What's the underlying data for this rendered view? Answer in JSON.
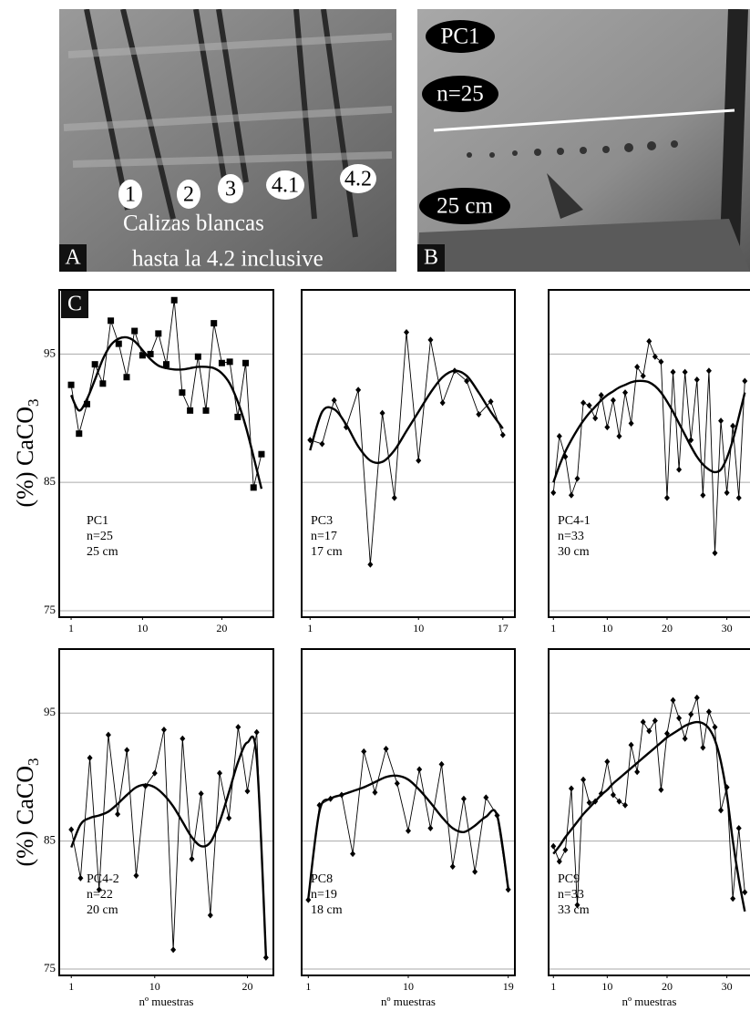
{
  "photos": [
    {
      "label": "A",
      "annotations": [
        "1",
        "2",
        "3",
        "4.1",
        "4.2"
      ],
      "caption": [
        "Calizas blancas",
        "hasta la 4.2 inclusive"
      ]
    },
    {
      "label": "B",
      "annotations": [
        "PC1",
        "n=25",
        "25 cm"
      ]
    }
  ],
  "panel_label": "C",
  "ylabel": "(%) CaCO",
  "ylabel_subscript": "3",
  "xlabel": "nº muestras",
  "chart_data": [
    {
      "type": "line",
      "notes": [
        "PC1",
        "n=25",
        "25 cm"
      ],
      "x": [
        1,
        2,
        3,
        4,
        5,
        6,
        7,
        8,
        9,
        10,
        11,
        12,
        13,
        14,
        15,
        16,
        17,
        18,
        19,
        20,
        21,
        22,
        23,
        24,
        25
      ],
      "series": [
        {
          "color": "#000000",
          "marker": "square",
          "values": [
            92.6,
            88.8,
            91.1,
            94.2,
            92.7,
            97.6,
            95.8,
            93.2,
            96.8,
            94.9,
            95.0,
            96.6,
            94.2,
            99.2,
            92.0,
            90.6,
            94.8,
            90.6,
            97.4,
            94.3,
            94.4,
            90.1,
            94.3,
            84.6,
            87.2
          ]
        },
        {
          "color": "#000000",
          "smooth": true,
          "values": [
            91.8,
            90.6,
            91.5,
            93.0,
            94.6,
            95.7,
            96.2,
            96.3,
            96.0,
            95.3,
            94.6,
            94.1,
            93.9,
            93.8,
            93.8,
            93.9,
            94.0,
            94.0,
            93.9,
            93.5,
            92.7,
            91.3,
            89.4,
            87.0,
            84.5
          ]
        }
      ],
      "xlim": [
        -0.5,
        26.5
      ],
      "xticks": [
        1,
        10,
        20
      ],
      "ylim": [
        74.5,
        100
      ],
      "yticks": [
        75,
        85,
        95
      ],
      "ytick_labels": true,
      "grid": true
    },
    {
      "type": "line",
      "notes": [
        "PC3",
        "n=17",
        "17 cm"
      ],
      "x": [
        1,
        2,
        3,
        4,
        5,
        6,
        7,
        8,
        9,
        10,
        11,
        12,
        13,
        14,
        15,
        16,
        17
      ],
      "series": [
        {
          "color": "#000000",
          "marker": "diamond",
          "values": [
            88.3,
            88.0,
            91.4,
            89.3,
            92.2,
            78.6,
            90.4,
            83.8,
            96.7,
            86.7,
            96.1,
            91.2,
            93.7,
            92.9,
            90.3,
            91.3,
            88.7
          ]
        },
        {
          "color": "#000000",
          "smooth": true,
          "values": [
            87.5,
            90.5,
            90.7,
            89.5,
            87.8,
            86.7,
            86.6,
            87.5,
            89.0,
            90.5,
            92.0,
            93.2,
            93.7,
            93.3,
            92.0,
            90.5,
            89.2
          ]
        }
      ],
      "xlim": [
        0.3,
        18
      ],
      "xticks": [
        1,
        10,
        17
      ],
      "ylim": [
        74.5,
        100
      ],
      "yticks": [
        75,
        85,
        95
      ],
      "ytick_labels": false,
      "grid": true
    },
    {
      "type": "line",
      "notes": [
        "PC4-1",
        "n=33",
        "30 cm"
      ],
      "x": [
        1,
        2,
        3,
        4,
        5,
        6,
        7,
        8,
        9,
        10,
        11,
        12,
        13,
        14,
        15,
        16,
        17,
        18,
        19,
        20,
        21,
        22,
        23,
        24,
        25,
        26,
        27,
        28,
        29,
        30,
        31,
        32,
        33
      ],
      "series": [
        {
          "color": "#000000",
          "marker": "diamond",
          "values": [
            84.2,
            88.6,
            87.0,
            84.0,
            85.3,
            91.2,
            91.0,
            90.0,
            91.8,
            89.3,
            91.4,
            88.6,
            92.0,
            89.6,
            94.0,
            93.3,
            96.0,
            94.8,
            94.4,
            83.8,
            93.6,
            86.0,
            93.6,
            88.3,
            93.0,
            84.0,
            93.7,
            79.5,
            89.8,
            84.2,
            89.4,
            83.8,
            92.9
          ]
        },
        {
          "color": "#000000",
          "smooth": true,
          "values": [
            85.0,
            86.3,
            87.4,
            88.3,
            89.1,
            89.8,
            90.4,
            90.9,
            91.4,
            91.8,
            92.1,
            92.4,
            92.6,
            92.8,
            92.9,
            92.9,
            92.8,
            92.5,
            92.0,
            91.3,
            90.5,
            89.6,
            88.7,
            87.8,
            87.0,
            86.4,
            86.0,
            85.8,
            86.0,
            86.9,
            88.3,
            90.1,
            92.0
          ]
        }
      ],
      "xlim": [
        0.2,
        36
      ],
      "xticks": [
        1,
        10,
        20,
        30
      ],
      "ylim": [
        74.5,
        100
      ],
      "yticks": [
        75,
        85,
        95
      ],
      "ytick_labels": false,
      "grid": true
    },
    {
      "type": "line",
      "notes": [
        "PC4-2",
        "n=22",
        "20 cm"
      ],
      "x": [
        1,
        2,
        3,
        4,
        5,
        6,
        7,
        8,
        9,
        10,
        11,
        12,
        13,
        14,
        15,
        16,
        17,
        18,
        19,
        20,
        21,
        22
      ],
      "series": [
        {
          "color": "#000000",
          "marker": "diamond",
          "values": [
            85.9,
            82.1,
            91.5,
            81.2,
            93.3,
            87.1,
            92.1,
            82.3,
            89.3,
            90.3,
            93.7,
            76.5,
            93.0,
            83.6,
            88.7,
            79.2,
            90.3,
            86.8,
            93.9,
            88.9,
            93.5,
            75.9
          ]
        },
        {
          "color": "#000000",
          "smooth": true,
          "values": [
            84.5,
            86.3,
            86.8,
            87.0,
            87.3,
            87.9,
            88.6,
            89.2,
            89.4,
            89.2,
            88.6,
            87.7,
            86.5,
            85.3,
            84.6,
            84.9,
            86.5,
            88.8,
            91.2,
            92.7,
            91.5,
            76.0
          ]
        }
      ],
      "xlim": [
        -0.3,
        22.8
      ],
      "xticks": [
        1,
        10,
        20
      ],
      "ylim": [
        74.5,
        100
      ],
      "yticks": [
        75,
        85,
        95
      ],
      "ytick_labels": true,
      "grid": true
    },
    {
      "type": "line",
      "notes": [
        "PC8",
        "n=19",
        "18 cm"
      ],
      "x": [
        1,
        2,
        3,
        4,
        5,
        6,
        7,
        8,
        9,
        10,
        11,
        12,
        13,
        14,
        15,
        16,
        17,
        18,
        19
      ],
      "series": [
        {
          "color": "#000000",
          "marker": "diamond",
          "values": [
            80.4,
            87.8,
            88.3,
            88.6,
            84.0,
            92.0,
            88.8,
            92.2,
            89.5,
            85.8,
            90.6,
            86.0,
            91.0,
            83.0,
            88.3,
            82.6,
            88.4,
            87.0,
            81.2
          ]
        },
        {
          "color": "#000000",
          "smooth": true,
          "values": [
            80.5,
            87.3,
            88.3,
            88.6,
            88.9,
            89.2,
            89.6,
            90.0,
            90.1,
            89.8,
            89.0,
            88.0,
            86.9,
            86.0,
            85.7,
            86.2,
            86.9,
            87.0,
            81.3
          ]
        }
      ],
      "xlim": [
        0.4,
        19.6
      ],
      "xticks": [
        1,
        10,
        19
      ],
      "ylim": [
        74.5,
        100
      ],
      "yticks": [
        75,
        85,
        95
      ],
      "ytick_labels": false,
      "grid": true
    },
    {
      "type": "line",
      "notes": [
        "PC9",
        "n=33",
        "33 cm"
      ],
      "x": [
        1,
        2,
        3,
        4,
        5,
        6,
        7,
        8,
        9,
        10,
        11,
        12,
        13,
        14,
        15,
        16,
        17,
        18,
        19,
        20,
        21,
        22,
        23,
        24,
        25,
        26,
        27,
        28,
        29,
        30,
        31,
        32,
        33
      ],
      "series": [
        {
          "color": "#000000",
          "marker": "diamond",
          "values": [
            84.6,
            83.4,
            84.3,
            89.1,
            80.0,
            89.8,
            88.0,
            88.1,
            88.7,
            91.2,
            88.6,
            88.1,
            87.8,
            92.5,
            90.4,
            94.3,
            93.6,
            94.4,
            89.0,
            93.4,
            96.0,
            94.6,
            93.0,
            94.9,
            96.2,
            92.3,
            95.1,
            93.9,
            87.4,
            89.2,
            80.5,
            86.0,
            81.0
          ]
        },
        {
          "color": "#000000",
          "smooth": true,
          "values": [
            84.0,
            84.6,
            85.3,
            85.9,
            86.5,
            87.1,
            87.6,
            88.1,
            88.6,
            89.0,
            89.5,
            89.9,
            90.3,
            90.7,
            91.1,
            91.5,
            91.9,
            92.3,
            92.7,
            93.1,
            93.4,
            93.7,
            94.0,
            94.2,
            94.3,
            94.2,
            93.8,
            92.9,
            91.2,
            88.6,
            85.0,
            82.0,
            79.5
          ]
        }
      ],
      "xlim": [
        0.2,
        36
      ],
      "xticks": [
        1,
        10,
        20,
        30
      ],
      "ylim": [
        74.5,
        100
      ],
      "yticks": [
        75,
        85,
        95
      ],
      "ytick_labels": false,
      "grid": true
    }
  ]
}
